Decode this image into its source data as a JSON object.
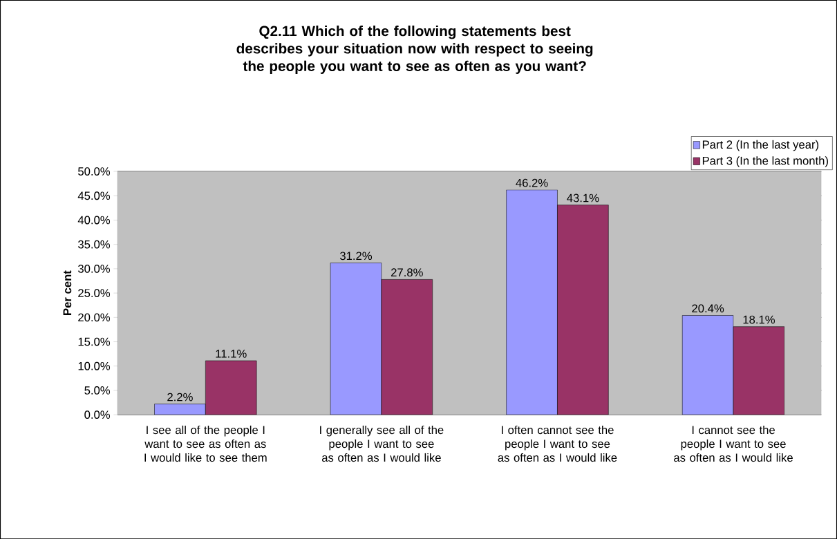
{
  "chart_data": {
    "type": "bar",
    "title": "Q2.11 Which of the following statements best describes your situation now with respect to seeing the people you want to see as often as you want?",
    "ylabel": "Per cent",
    "categories": [
      "I see all of the people I want to see as often as I would like to see them",
      "I generally see all of the people I want to see as often as I would like",
      "I often cannot see the people I want to see as often as I would like",
      "I cannot see the people I want to see as often as I would like"
    ],
    "series": [
      {
        "name": "Part 2 (In the last year)",
        "color": "#9999ff",
        "values": [
          2.2,
          31.2,
          46.2,
          20.4
        ],
        "value_labels": [
          "2.2%",
          "31.2%",
          "46.2%",
          "20.4%"
        ]
      },
      {
        "name": "Part 3 (In the last month)",
        "color": "#993366",
        "values": [
          11.1,
          27.8,
          43.1,
          18.1
        ],
        "value_labels": [
          "11.1%",
          "27.8%",
          "43.1%",
          "18.1%"
        ]
      }
    ],
    "ylim": [
      0,
      50
    ],
    "yticks": [
      {
        "value": 0,
        "label": "0.0%"
      },
      {
        "value": 5,
        "label": "5.0%"
      },
      {
        "value": 10,
        "label": "10.0%"
      },
      {
        "value": 15,
        "label": "15.0%"
      },
      {
        "value": 20,
        "label": "20.0%"
      },
      {
        "value": 25,
        "label": "25.0%"
      },
      {
        "value": 30,
        "label": "30.0%"
      },
      {
        "value": 35,
        "label": "35.0%"
      },
      {
        "value": 40,
        "label": "40.0%"
      },
      {
        "value": 45,
        "label": "45.0%"
      },
      {
        "value": 50,
        "label": "50.0%"
      }
    ],
    "grid": "y",
    "legend": "top right"
  }
}
